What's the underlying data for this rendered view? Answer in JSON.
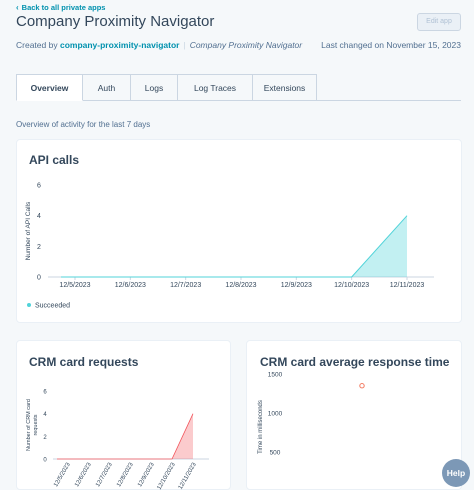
{
  "header": {
    "back_link": "Back to all private apps",
    "title": "Company Proximity Navigator",
    "edit_button": "Edit app",
    "created_by_label": "Created by",
    "creator": "company-proximity-navigator",
    "company": "Company Proximity Navigator",
    "last_changed": "Last changed on November 15, 2023"
  },
  "tabs": [
    {
      "label": "Overview",
      "active": true
    },
    {
      "label": "Auth",
      "active": false
    },
    {
      "label": "Logs",
      "active": false
    },
    {
      "label": "Log Traces",
      "active": false
    },
    {
      "label": "Extensions",
      "active": false
    }
  ],
  "overview_text": "Overview of activity for the last 7 days",
  "colors": {
    "accent": "#0091ae",
    "succeeded": "#51d3d9",
    "crm_requests": "#f2545b",
    "response_time": "#f2795f"
  },
  "chart_data": [
    {
      "type": "area",
      "title": "API calls",
      "ylabel": "Number of API Calls",
      "xlabel": "",
      "categories": [
        "12/5/2023",
        "12/6/2023",
        "12/7/2023",
        "12/8/2023",
        "12/9/2023",
        "12/10/2023",
        "12/11/2023"
      ],
      "series": [
        {
          "name": "Succeeded",
          "values": [
            0,
            0,
            0,
            0,
            0,
            0,
            4
          ]
        }
      ],
      "ylim": [
        0,
        6
      ],
      "yticks": [
        "0",
        "2",
        "4",
        "6"
      ],
      "legend": "bottom-left"
    },
    {
      "type": "area",
      "title": "CRM card requests",
      "ylabel": "Number of CRM card requests",
      "xlabel": "",
      "categories": [
        "12/5/2023",
        "12/6/2023",
        "12/7/2023",
        "12/8/2023",
        "12/9/2023",
        "12/10/2023",
        "12/11/2023"
      ],
      "series": [
        {
          "values": [
            0,
            0,
            0,
            0,
            0,
            0,
            4
          ]
        }
      ],
      "ylim": [
        0,
        6
      ],
      "yticks": [
        "0",
        "2",
        "4",
        "6"
      ]
    },
    {
      "type": "scatter",
      "title": "CRM card average response time",
      "ylabel": "Time in milliseconds",
      "xlabel": "",
      "series": [
        {
          "values": [
            1350
          ]
        }
      ],
      "ylim": [
        0,
        1500
      ],
      "yticks": [
        "500",
        "1000",
        "1500"
      ]
    }
  ],
  "help_button": "Help"
}
